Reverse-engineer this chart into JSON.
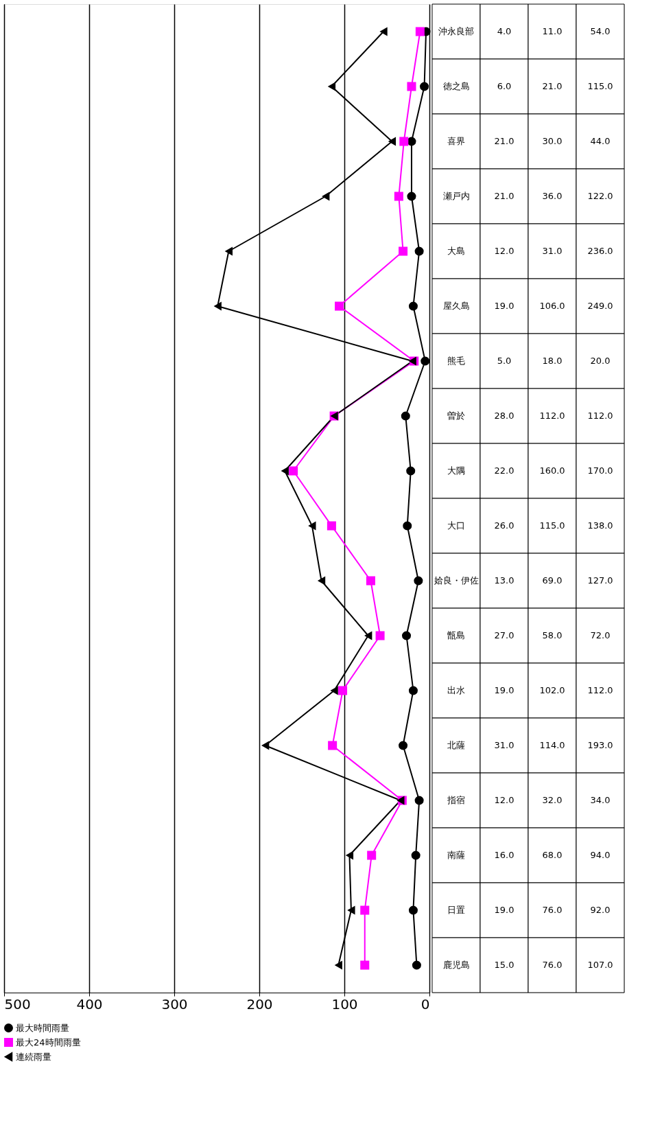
{
  "chart_data": {
    "type": "line",
    "orientation": "horizontal",
    "categories": [
      "沖永良部",
      "徳之島",
      "喜界",
      "瀬戸内",
      "大島",
      "屋久島",
      "熊毛",
      "曽於",
      "大隅",
      "大口",
      "姶良・伊佐",
      "甑島",
      "出水",
      "北薩",
      "指宿",
      "南薩",
      "日置",
      "鹿児島"
    ],
    "series": [
      {
        "name": "最大時間雨量",
        "color": "#000000",
        "marker": "circle",
        "values": [
          4,
          6,
          21,
          21,
          12,
          19,
          5,
          28,
          22,
          26,
          13,
          27,
          19,
          31,
          12,
          16,
          19,
          15
        ],
        "value_labels": [
          "4.0",
          "6.0",
          "21.0",
          "21.0",
          "12.0",
          "19.0",
          "5.0",
          "28.0",
          "22.0",
          "26.0",
          "13.0",
          "27.0",
          "19.0",
          "31.0",
          "12.0",
          "16.0",
          "19.0",
          "15.0"
        ]
      },
      {
        "name": "最大24時間雨量",
        "color": "#ff00ff",
        "marker": "square",
        "values": [
          11,
          21,
          30,
          36,
          31,
          106,
          18,
          112,
          160,
          115,
          69,
          58,
          102,
          114,
          32,
          68,
          76,
          76
        ],
        "value_labels": [
          "11.0",
          "21.0",
          "30.0",
          "36.0",
          "31.0",
          "106.0",
          "18.0",
          "112.0",
          "160.0",
          "115.0",
          "69.0",
          "58.0",
          "102.0",
          "114.0",
          "32.0",
          "68.0",
          "76.0",
          "76.0"
        ]
      },
      {
        "name": "連続雨量",
        "color": "#000000",
        "marker": "triangle",
        "values": [
          54,
          115,
          44,
          122,
          236,
          249,
          20,
          112,
          170,
          138,
          127,
          72,
          112,
          193,
          34,
          94,
          92,
          107
        ],
        "value_labels": [
          "54.0",
          "115.0",
          "44.0",
          "122.0",
          "236.0",
          "249.0",
          "20.0",
          "112.0",
          "170.0",
          "138.0",
          "127.0",
          "72.0",
          "112.0",
          "193.0",
          "34.0",
          "94.0",
          "92.0",
          "107.0"
        ]
      }
    ],
    "xlim": [
      500,
      0
    ],
    "xticks": [
      0,
      100,
      200,
      300,
      400,
      500
    ],
    "grid": "x",
    "legend": "bottom",
    "tick_labels": "x"
  }
}
